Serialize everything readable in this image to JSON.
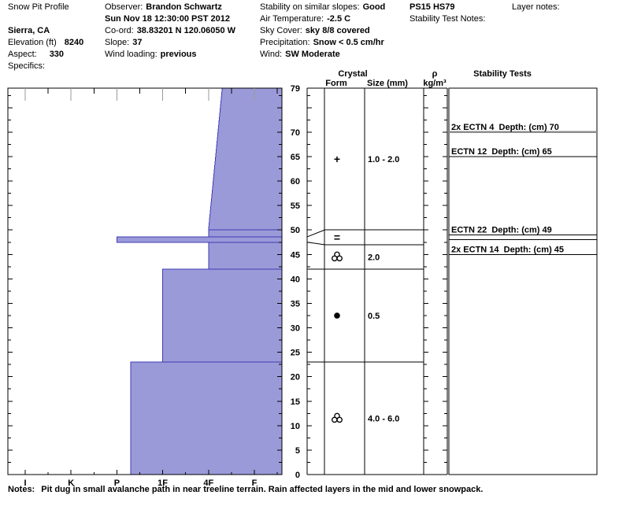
{
  "header": {
    "title": "Snow Pit Profile",
    "location": "Sierra, CA",
    "elevation_label": "Elevation (ft)",
    "elevation_value": "8240",
    "aspect_label": "Aspect:",
    "aspect_value": "330",
    "specifics_label": "Specifics:",
    "observer_label": "Observer:",
    "observer_value": "Brandon Schwartz",
    "datetime": "Sun Nov 18 12:30:00 PST 2012",
    "coord_label": "Co-ord:",
    "coord_value": "38.83201 N 120.06050 W",
    "slope_label": "Slope:",
    "slope_value": "37",
    "wind_loading_label": "Wind loading:",
    "wind_loading_value": "previous",
    "stability_slopes_label": "Stability on similar slopes:",
    "stability_slopes_value": "Good",
    "air_temp_label": "Air Temperature:",
    "air_temp_value": "-2.5 C",
    "sky_label": "Sky Cover:",
    "sky_value": "sky 8/8 covered",
    "precip_label": "Precipitation:",
    "precip_value": "Snow < 0.5 cm/hr",
    "wind_label": "Wind:",
    "wind_value": "SW Moderate",
    "pit_code": "PS15 HS79",
    "stability_test_notes_label": "Stability Test Notes:",
    "layer_notes_label": "Layer notes:"
  },
  "columns": {
    "crystal": "Crystal",
    "form": "Form",
    "size": "Size (mm)",
    "rho": "ρ",
    "rho_unit": "kg/m³",
    "stability": "Stability Tests"
  },
  "notes": {
    "label": "Notes:",
    "text": "Pit dug in small avalanche path in near treeline terrain. Rain affected layers in the mid and lower snowpack."
  },
  "chart_data": {
    "type": "bar",
    "subtype": "snow-pit-hardness-profile",
    "depth_unit": "cm",
    "total_depth_cm": 79,
    "depth_tick_labels": [
      79,
      70,
      65,
      60,
      55,
      50,
      45,
      40,
      35,
      30,
      25,
      20,
      15,
      10,
      5,
      0
    ],
    "hardness_categories": [
      "I",
      "K",
      "P",
      "1F",
      "4F",
      "F"
    ],
    "hardness_axis_note": "hand hardness; I (ice, hardest) at left through F (fist, softest) at right; bars extend left from right edge, longer bar = harder layer",
    "layers": [
      {
        "top_cm": 79,
        "bottom_cm": 50,
        "hardness": "4F-F grading to 4F",
        "h_top": 5.3,
        "h_bottom": 5.0
      },
      {
        "top_cm": 50,
        "bottom_cm": 48.6,
        "hardness": "4F",
        "h_top": 5.0,
        "h_bottom": 5.0
      },
      {
        "top_cm": 48.6,
        "bottom_cm": 47.5,
        "hardness": "P",
        "h_top": 3.0,
        "h_bottom": 3.0,
        "thin_crust": true
      },
      {
        "top_cm": 47.5,
        "bottom_cm": 42,
        "hardness": "4F",
        "h_top": 5.0,
        "h_bottom": 5.0
      },
      {
        "top_cm": 42,
        "bottom_cm": 23,
        "hardness": "1F",
        "h_top": 4.0,
        "h_bottom": 4.0
      },
      {
        "top_cm": 23,
        "bottom_cm": 0,
        "hardness": "P-1F",
        "h_top": 3.3,
        "h_bottom": 3.3
      }
    ],
    "grain_rows": [
      {
        "top_cm": 79,
        "bottom_cm": 50,
        "form_symbol": "plus",
        "size_mm": "1.0 - 2.0"
      },
      {
        "top_cm": 50,
        "bottom_cm": 47,
        "form_symbol": "equals",
        "size_mm": ""
      },
      {
        "top_cm": 47,
        "bottom_cm": 42,
        "form_symbol": "clover",
        "size_mm": "2.0"
      },
      {
        "top_cm": 42,
        "bottom_cm": 23,
        "form_symbol": "dot",
        "size_mm": "0.5"
      },
      {
        "top_cm": 23,
        "bottom_cm": 0,
        "form_symbol": "clover",
        "size_mm": "4.0 - 6.0"
      }
    ],
    "crust_callout": {
      "plot_top_cm": 48.6,
      "plot_bottom_cm": 47.5,
      "row_top_cm": 50,
      "row_bottom_cm": 47
    },
    "density_values": [],
    "stability_tests": [
      {
        "label": "2x ECTN 4  Depth: (cm) 70",
        "depth_cm": 70,
        "emphasized": true
      },
      {
        "label": "ECTN 12  Depth: (cm) 65",
        "depth_cm": 65
      },
      {
        "label": "ECTN 22  Depth: (cm) 49",
        "depth_cm": 49
      },
      {
        "label": "2x ECTN 14  Depth: (cm) 45",
        "depth_cm": 45
      }
    ],
    "extra_layer_lines_cm": [
      48
    ],
    "colors": {
      "bar_fill": "#9b9ad9",
      "bar_edge": "#3c3cb4",
      "axis": "#000000",
      "major_tick": "#9a9a9a",
      "emphasized_test_line": "#8c8c8c"
    }
  }
}
